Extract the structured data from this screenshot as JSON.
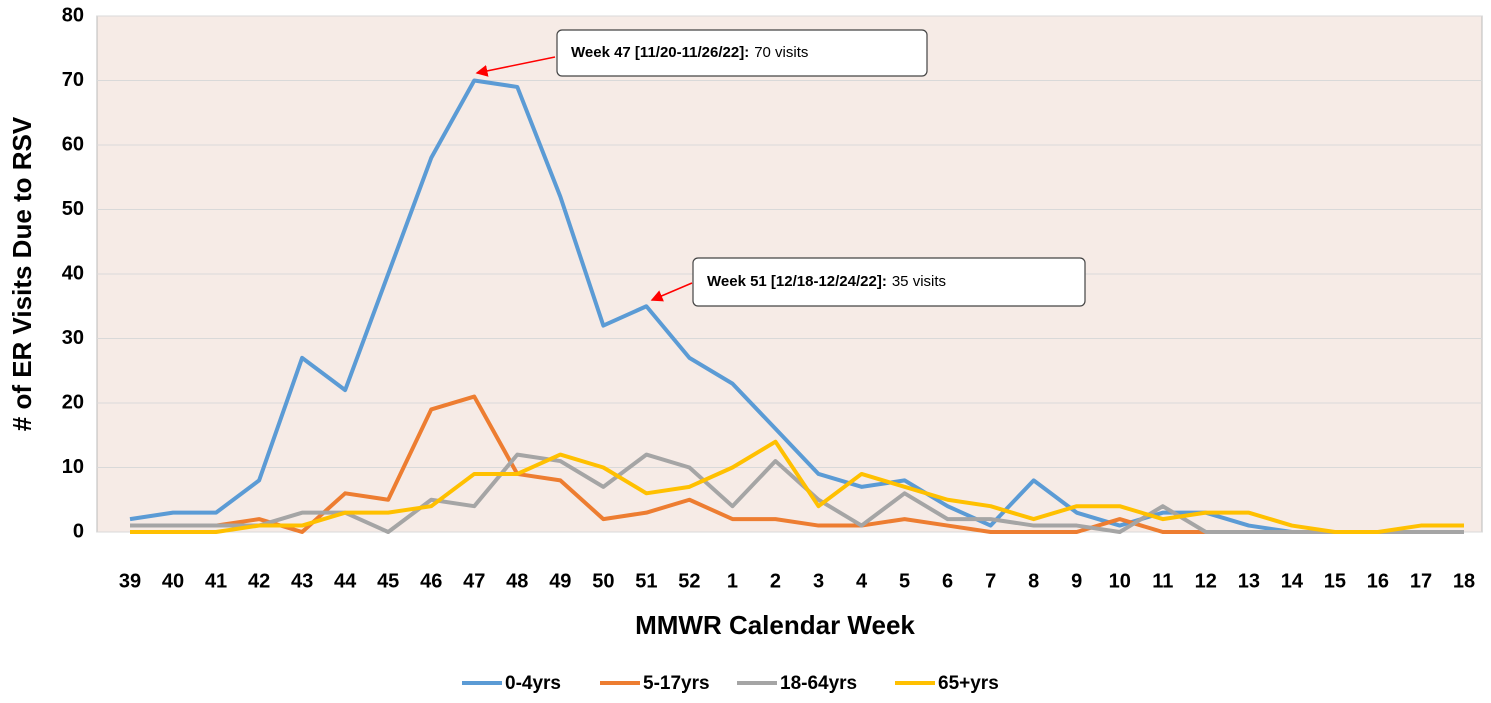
{
  "chart_data": {
    "type": "line",
    "y_label": "# of ER Visits Due to RSV",
    "x_label": "MMWR Calendar Week",
    "categories": [
      "39",
      "40",
      "41",
      "42",
      "43",
      "44",
      "45",
      "46",
      "47",
      "48",
      "49",
      "50",
      "51",
      "52",
      "1",
      "2",
      "3",
      "4",
      "5",
      "6",
      "7",
      "8",
      "9",
      "10",
      "11",
      "12",
      "13",
      "14",
      "15",
      "16",
      "17",
      "18"
    ],
    "series": [
      {
        "name": "0-4yrs",
        "color": "#5b9bd5",
        "values": [
          2,
          3,
          3,
          8,
          27,
          22,
          40,
          58,
          70,
          69,
          52,
          32,
          35,
          27,
          23,
          16,
          9,
          7,
          8,
          4,
          1,
          8,
          3,
          1,
          3,
          3,
          1,
          0,
          0,
          0,
          0,
          0
        ]
      },
      {
        "name": "5-17yrs",
        "color": "#ed7d31",
        "values": [
          1,
          1,
          1,
          2,
          0,
          6,
          5,
          19,
          21,
          9,
          8,
          2,
          3,
          5,
          2,
          2,
          1,
          1,
          2,
          1,
          0,
          0,
          0,
          2,
          0,
          0,
          null,
          null,
          null,
          null,
          null,
          null
        ]
      },
      {
        "name": "18-64yrs",
        "color": "#a5a5a5",
        "values": [
          1,
          1,
          1,
          1,
          3,
          3,
          0,
          5,
          4,
          12,
          11,
          7,
          12,
          10,
          4,
          11,
          5,
          1,
          6,
          2,
          2,
          1,
          1,
          0,
          4,
          0,
          0,
          0,
          0,
          0,
          0,
          0
        ]
      },
      {
        "name": "65+yrs",
        "color": "#ffc000",
        "values": [
          0,
          0,
          0,
          1,
          1,
          3,
          3,
          4,
          9,
          9,
          12,
          10,
          6,
          7,
          10,
          14,
          4,
          9,
          7,
          5,
          4,
          2,
          4,
          4,
          2,
          3,
          3,
          1,
          0,
          0,
          1,
          1
        ]
      }
    ],
    "ylim": [
      0,
      80
    ],
    "yticks": [
      0,
      10,
      20,
      30,
      40,
      50,
      60,
      70,
      80
    ],
    "grid": true,
    "annotations": [
      {
        "label": "Week 47 [11/20-11/26/22]:",
        "text": "70 visits"
      },
      {
        "label": "Week 51 [12/18-12/24/22]:",
        "text": "35 visits"
      }
    ]
  }
}
